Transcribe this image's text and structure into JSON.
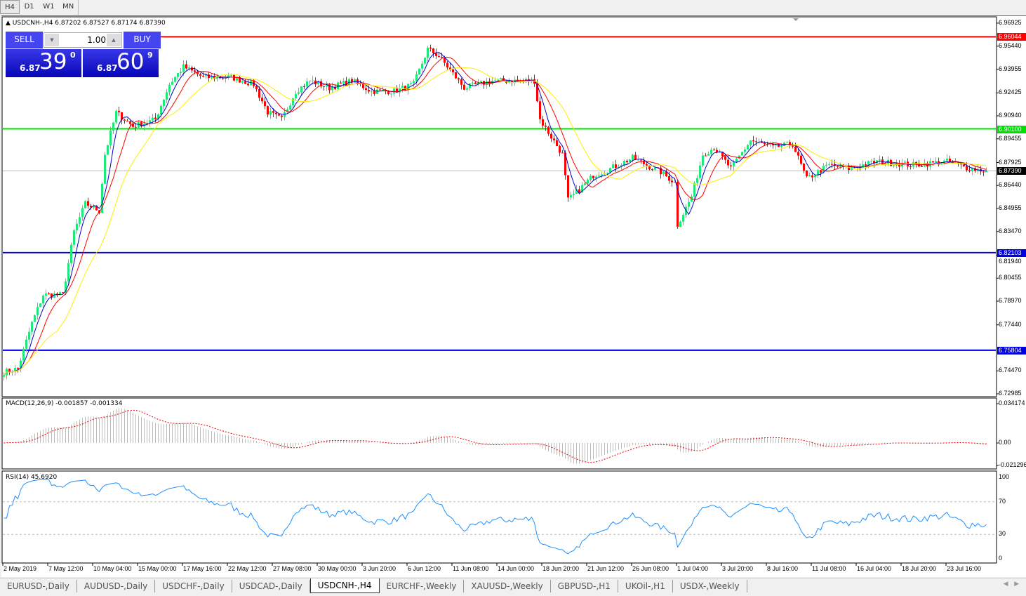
{
  "timeframes": [
    {
      "label": "H4",
      "active": true
    },
    {
      "label": "D1"
    },
    {
      "label": "W1"
    },
    {
      "label": "MN"
    }
  ],
  "chart": {
    "title": "USDCNH-,H4  6.87202 6.87527 6.87174 6.87390",
    "symbol": "USDCNH-",
    "period": "H4",
    "ohlc": {
      "open": 6.87202,
      "high": 6.87527,
      "low": 6.87174,
      "close": 6.8739
    },
    "price_ticks": [
      "6.96925",
      "6.95440",
      "6.93955",
      "6.92425",
      "6.90940",
      "6.89455",
      "6.87925",
      "6.86440",
      "6.84955",
      "6.83470",
      "6.81940",
      "6.80455",
      "6.78970",
      "6.77440",
      "6.74470",
      "6.72985"
    ],
    "horizontal_lines": [
      {
        "price": "6.96044",
        "color": "#ff0000"
      },
      {
        "price": "6.90100",
        "color": "#00e000"
      },
      {
        "price": "6.82103",
        "color": "#0000e0"
      },
      {
        "price": "6.75804",
        "color": "#0000e0"
      }
    ],
    "current_price": "6.87390",
    "price_path": [
      [
        0,
        6.7439
      ],
      [
        5,
        6.7462
      ],
      [
        10,
        6.7756
      ],
      [
        14,
        6.7938
      ],
      [
        21,
        6.7938
      ],
      [
        25,
        6.8346
      ],
      [
        29,
        6.8527
      ],
      [
        34,
        6.8482
      ],
      [
        36,
        6.8845
      ],
      [
        40,
        6.9117
      ],
      [
        46,
        6.9026
      ],
      [
        54,
        6.9071
      ],
      [
        59,
        6.9298
      ],
      [
        64,
        6.9411
      ],
      [
        71,
        6.9343
      ],
      [
        81,
        6.9343
      ],
      [
        89,
        6.9298
      ],
      [
        94,
        6.9117
      ],
      [
        99,
        6.9071
      ],
      [
        104,
        6.9253
      ],
      [
        109,
        6.9321
      ],
      [
        116,
        6.9275
      ],
      [
        124,
        6.9321
      ],
      [
        131,
        6.9253
      ],
      [
        139,
        6.9253
      ],
      [
        146,
        6.9298
      ],
      [
        151,
        6.9525
      ],
      [
        155,
        6.9479
      ],
      [
        159,
        6.9389
      ],
      [
        164,
        6.9275
      ],
      [
        174,
        6.9321
      ],
      [
        189,
        6.9321
      ],
      [
        191,
        6.9071
      ],
      [
        199,
        6.8845
      ],
      [
        201,
        6.855
      ],
      [
        205,
        6.8618
      ],
      [
        210,
        6.8709
      ],
      [
        216,
        6.8754
      ],
      [
        224,
        6.8822
      ],
      [
        234,
        6.8731
      ],
      [
        239,
        6.8663
      ],
      [
        240,
        6.8391
      ],
      [
        245,
        6.8573
      ],
      [
        249,
        6.8845
      ],
      [
        253,
        6.889
      ],
      [
        259,
        6.8754
      ],
      [
        266,
        6.8935
      ],
      [
        274,
        6.889
      ],
      [
        281,
        6.8912
      ],
      [
        286,
        6.8686
      ],
      [
        294,
        6.8777
      ],
      [
        301,
        6.8754
      ],
      [
        311,
        6.8799
      ],
      [
        324,
        6.8777
      ],
      [
        336,
        6.8799
      ],
      [
        344,
        6.8754
      ],
      [
        350,
        6.8739
      ]
    ],
    "colors": {
      "bull": "#1ee87a",
      "bear": "#ff0000",
      "ma_fast": "#0000c8",
      "ma_mid": "#ff0000",
      "ma_slow": "#ffee00"
    }
  },
  "trade_panel": {
    "sell_label": "SELL",
    "buy_label": "BUY",
    "lot": "1.00",
    "sell_prefix": "6.87",
    "sell_big": "39",
    "sell_pip": "0",
    "buy_prefix": "6.87",
    "buy_big": "60",
    "buy_pip": "9"
  },
  "macd": {
    "label": "MACD(12,26,9) -0.001857 -0.001334",
    "ticks": [
      "0.034174",
      "0.00",
      "-0.021296"
    ]
  },
  "rsi": {
    "label": "RSI(14) 45.6920",
    "ticks": [
      "100",
      "70",
      "30",
      "0"
    ]
  },
  "time_labels": [
    "2 May 2019",
    "7 May 12:00",
    "10 May 04:00",
    "15 May 00:00",
    "17 May 16:00",
    "22 May 12:00",
    "27 May 08:00",
    "30 May 00:00",
    "3 Jun 20:00",
    "6 Jun 12:00",
    "11 Jun 08:00",
    "14 Jun 00:00",
    "18 Jun 20:00",
    "21 Jun 12:00",
    "26 Jun 08:00",
    "1 Jul 04:00",
    "3 Jul 20:00",
    "8 Jul 16:00",
    "11 Jul 08:00",
    "16 Jul 04:00",
    "18 Jul 20:00",
    "23 Jul 16:00"
  ],
  "tabs": [
    {
      "label": "EURUSD-,Daily"
    },
    {
      "label": "AUDUSD-,Daily"
    },
    {
      "label": "USDCHF-,Daily"
    },
    {
      "label": "USDCAD-,Daily"
    },
    {
      "label": "USDCNH-,H4",
      "active": true
    },
    {
      "label": "EURCHF-,Weekly"
    },
    {
      "label": "XAUUSD-,Weekly"
    },
    {
      "label": "GBPUSD-,H1"
    },
    {
      "label": "UKOil-,H1"
    },
    {
      "label": "USDX-,Weekly"
    }
  ]
}
